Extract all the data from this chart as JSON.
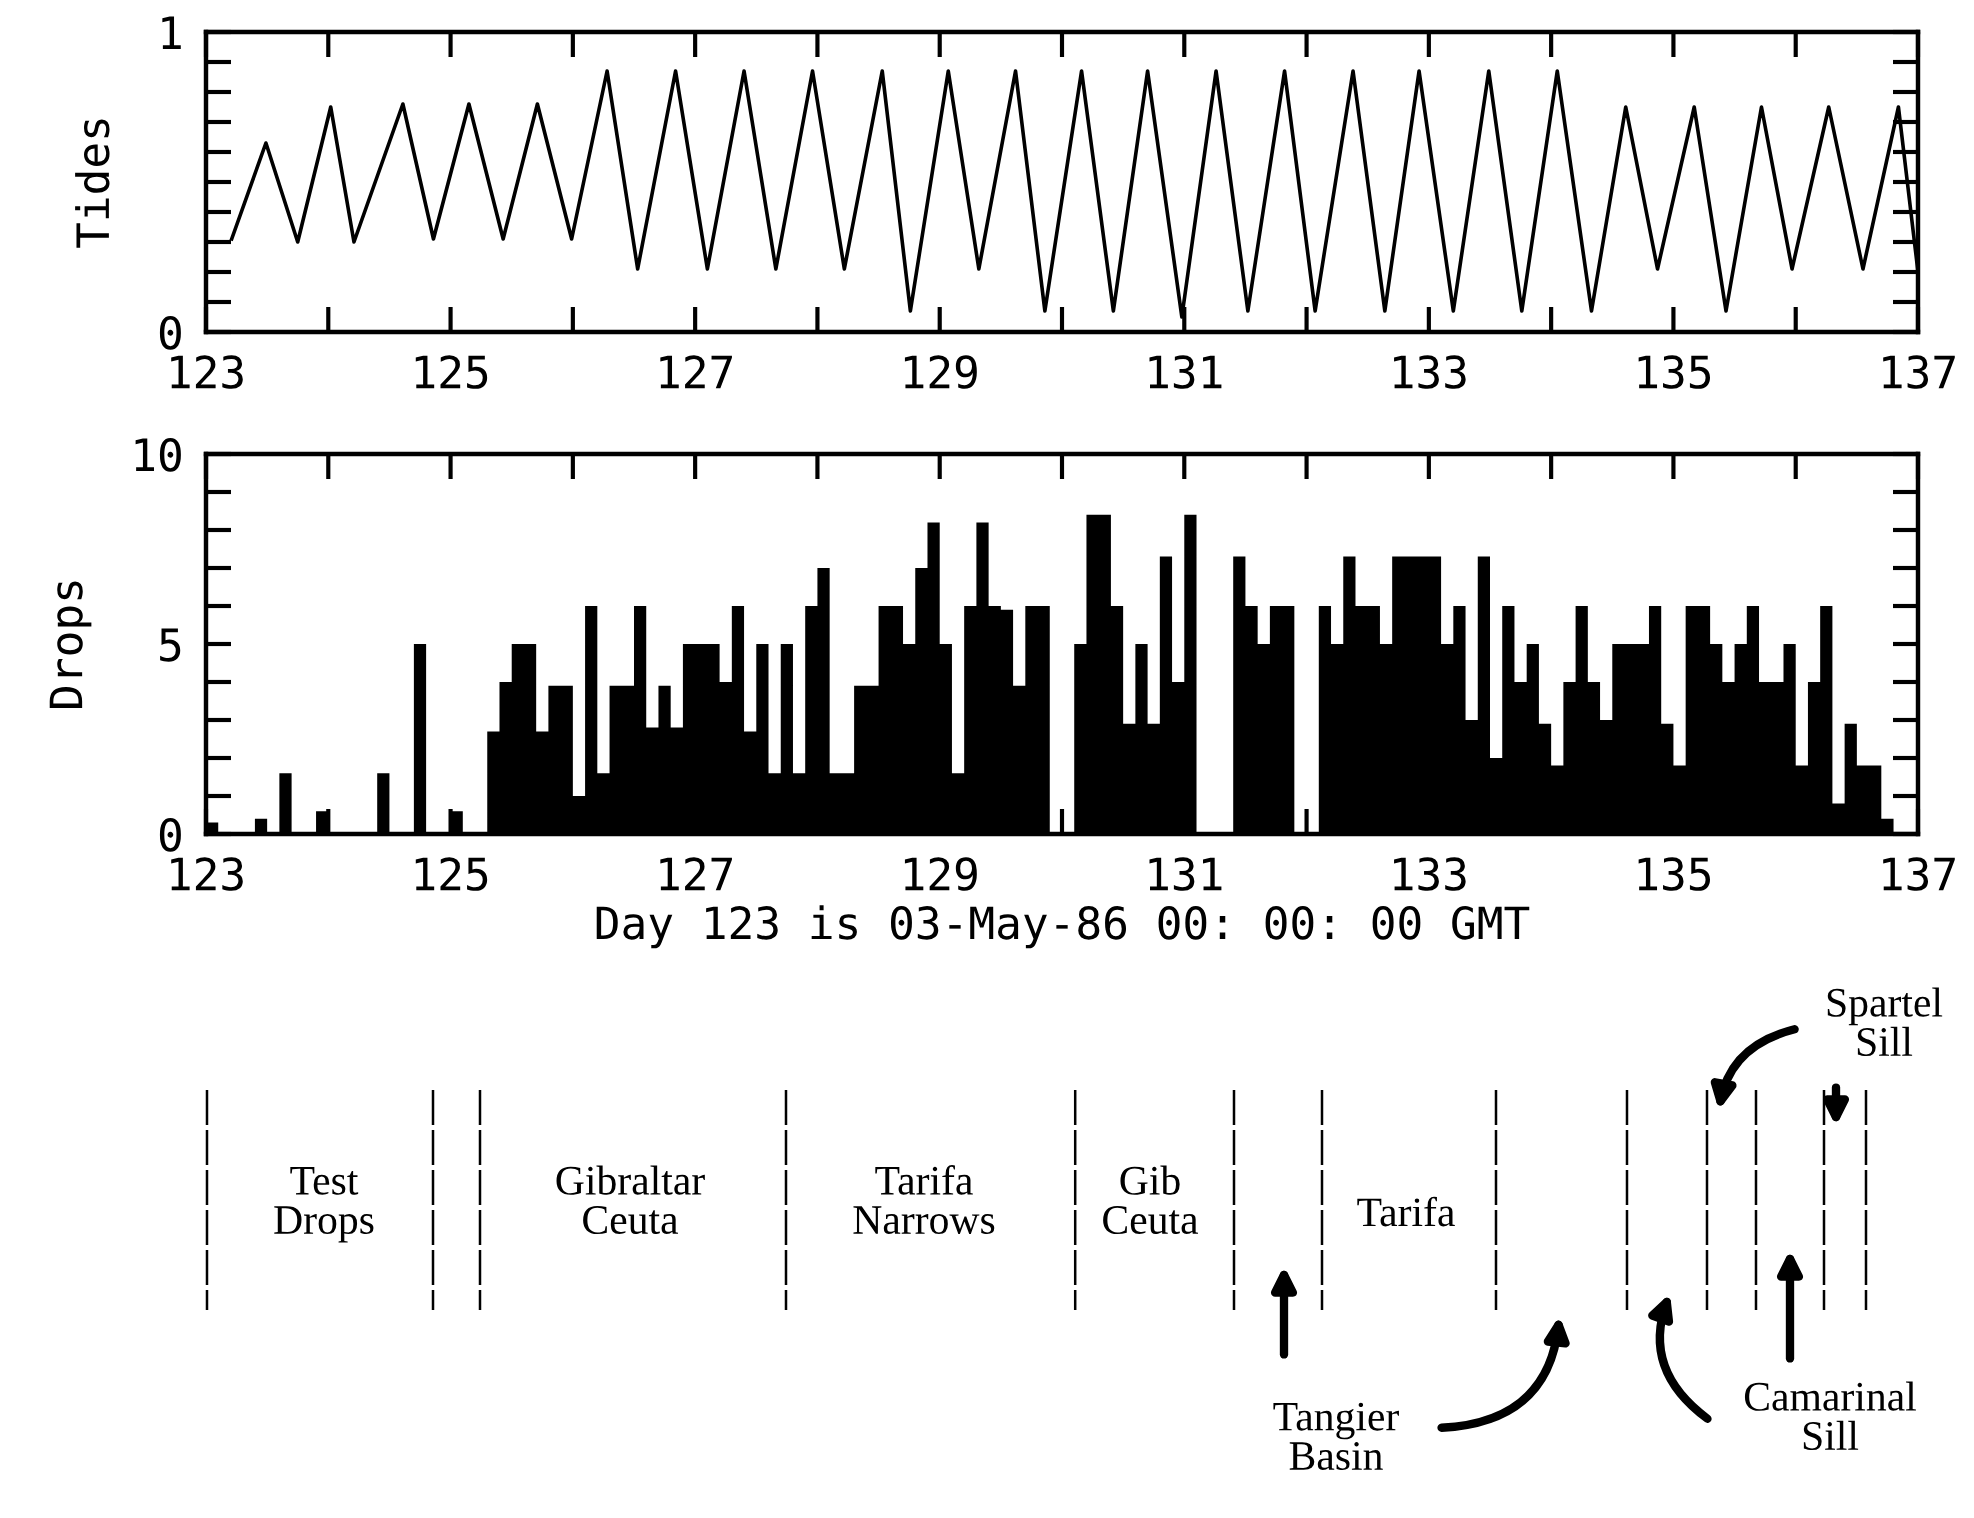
{
  "chart_data": [
    {
      "type": "line",
      "ylabel": "Tides",
      "color": "#000000",
      "marker": "none",
      "line_style": "solid",
      "grid": false,
      "legend": false,
      "x": [
        123.21,
        123.49,
        123.75,
        124.02,
        124.21,
        124.61,
        124.86,
        125.15,
        125.43,
        125.71,
        125.99,
        126.28,
        126.53,
        126.84,
        127.1,
        127.4,
        127.66,
        127.96,
        128.22,
        128.53,
        128.76,
        129.07,
        129.32,
        129.62,
        129.86,
        130.16,
        130.42,
        130.7,
        130.98,
        131.26,
        131.52,
        131.82,
        132.07,
        132.38,
        132.64,
        132.92,
        133.2,
        133.49,
        133.76,
        134.05,
        134.33,
        134.61,
        134.87,
        135.17,
        135.43,
        135.72,
        135.97,
        136.27,
        136.55,
        136.84,
        137.0
      ],
      "values": [
        0.31,
        0.63,
        0.3,
        0.75,
        0.3,
        0.76,
        0.31,
        0.76,
        0.31,
        0.76,
        0.31,
        0.87,
        0.21,
        0.87,
        0.21,
        0.87,
        0.21,
        0.87,
        0.21,
        0.87,
        0.07,
        0.87,
        0.21,
        0.87,
        0.07,
        0.87,
        0.07,
        0.87,
        0.05,
        0.87,
        0.07,
        0.87,
        0.07,
        0.87,
        0.07,
        0.87,
        0.07,
        0.87,
        0.07,
        0.87,
        0.07,
        0.75,
        0.21,
        0.75,
        0.07,
        0.75,
        0.21,
        0.75,
        0.21,
        0.75,
        0.2
      ],
      "xlim": [
        123,
        137
      ],
      "xticks": [
        123,
        {
          "value": 124,
          "label": null
        },
        125,
        {
          "value": 126,
          "label": null
        },
        127,
        {
          "value": 128,
          "label": null
        },
        129,
        {
          "value": 130,
          "label": null
        },
        131,
        {
          "value": 132,
          "label": null
        },
        133,
        {
          "value": 134,
          "label": null
        },
        135,
        {
          "value": 136,
          "label": null
        },
        137
      ],
      "ylim": [
        0,
        1
      ],
      "yticks": [
        0,
        {
          "value": 0.1,
          "label": null
        },
        {
          "value": 0.2,
          "label": null
        },
        {
          "value": 0.3,
          "label": null
        },
        {
          "value": 0.4,
          "label": null
        },
        {
          "value": 0.5,
          "label": null
        },
        {
          "value": 0.6,
          "label": null
        },
        {
          "value": 0.7,
          "label": null
        },
        {
          "value": 0.8,
          "label": null
        },
        {
          "value": 0.9,
          "label": null
        },
        1
      ]
    },
    {
      "type": "histogram",
      "ylabel": "Drops",
      "xlabel": "Day 123 is 03-May-86 00: 00: 00 GMT",
      "color": "#000000",
      "grid": false,
      "legend": false,
      "bins": [
        123.0,
        123.1,
        123.2,
        123.3,
        123.4,
        123.5,
        123.6,
        123.7,
        123.8,
        123.9,
        124.0,
        124.1,
        124.2,
        124.3,
        124.4,
        124.5,
        124.6,
        124.7,
        124.8,
        124.9,
        125.0,
        125.1,
        125.2,
        125.3,
        125.4,
        125.5,
        125.6,
        125.7,
        125.8,
        125.9,
        126.0,
        126.1,
        126.2,
        126.3,
        126.4,
        126.5,
        126.6,
        126.7,
        126.8,
        126.9,
        127.0,
        127.1,
        127.2,
        127.3,
        127.4,
        127.5,
        127.6,
        127.7,
        127.8,
        127.9,
        128.0,
        128.1,
        128.2,
        128.3,
        128.4,
        128.5,
        128.6,
        128.7,
        128.8,
        128.9,
        129.0,
        129.1,
        129.2,
        129.3,
        129.4,
        129.5,
        129.6,
        129.7,
        129.8,
        129.9,
        130.0,
        130.1,
        130.2,
        130.3,
        130.4,
        130.5,
        130.6,
        130.7,
        130.8,
        130.9,
        131.0,
        131.1,
        131.2,
        131.3,
        131.4,
        131.5,
        131.6,
        131.7,
        131.8,
        131.9,
        132.0,
        132.1,
        132.2,
        132.3,
        132.4,
        132.5,
        132.6,
        132.7,
        132.8,
        132.9,
        133.0,
        133.1,
        133.2,
        133.3,
        133.4,
        133.5,
        133.6,
        133.7,
        133.8,
        133.9,
        134.0,
        134.1,
        134.2,
        134.3,
        134.4,
        134.5,
        134.6,
        134.7,
        134.8,
        134.9,
        135.0,
        135.1,
        135.2,
        135.3,
        135.4,
        135.5,
        135.6,
        135.7,
        135.8,
        135.9,
        136.0,
        136.1,
        136.2,
        136.3,
        136.4,
        136.5,
        136.6,
        136.7,
        136.8,
        136.9,
        137.0
      ],
      "values": [
        0.3,
        0,
        0,
        0,
        0.4,
        0,
        1.6,
        0,
        0,
        0.6,
        0,
        0,
        0,
        0,
        1.6,
        0,
        0,
        5,
        0,
        0,
        0.6,
        0,
        0,
        2.7,
        4,
        5,
        5,
        2.7,
        3.9,
        3.9,
        1,
        6,
        1.6,
        3.9,
        3.9,
        6,
        2.8,
        3.9,
        2.8,
        5,
        5,
        5,
        4,
        6,
        2.7,
        5,
        1.6,
        5,
        1.6,
        6,
        7,
        1.6,
        1.6,
        3.9,
        3.9,
        6,
        6,
        5,
        7,
        8.2,
        5,
        1.6,
        6,
        8.2,
        6,
        5.9,
        3.9,
        6,
        6,
        0,
        0,
        5,
        8.4,
        8.4,
        6,
        2.9,
        5,
        2.9,
        7.3,
        4,
        8.4,
        0,
        0,
        0,
        7.3,
        6,
        5,
        6,
        6,
        0,
        0,
        6,
        5,
        7.3,
        6,
        6,
        5,
        7.3,
        7.3,
        7.3,
        7.3,
        5,
        6,
        3,
        7.3,
        2,
        6,
        4,
        5,
        2.9,
        1.8,
        4,
        6,
        4,
        3,
        5,
        5,
        5,
        6,
        2.9,
        1.8,
        6,
        6,
        5,
        4,
        5,
        6,
        4,
        4,
        5,
        1.8,
        4,
        6,
        0.8,
        2.9,
        1.8,
        1.8,
        0.4,
        0,
        0
      ],
      "xlim": [
        123,
        137
      ],
      "xticks": [
        123,
        {
          "value": 124,
          "label": null
        },
        125,
        {
          "value": 126,
          "label": null
        },
        127,
        {
          "value": 128,
          "label": null
        },
        129,
        {
          "value": 130,
          "label": null
        },
        131,
        {
          "value": 132,
          "label": null
        },
        133,
        {
          "value": 134,
          "label": null
        },
        135,
        {
          "value": 136,
          "label": null
        },
        137
      ],
      "ylim": [
        0,
        10
      ],
      "yticks": [
        0,
        {
          "value": 1,
          "label": null
        },
        {
          "value": 2,
          "label": null
        },
        {
          "value": 3,
          "label": null
        },
        {
          "value": 4,
          "label": null
        },
        5,
        {
          "value": 6,
          "label": null
        },
        {
          "value": 7,
          "label": null
        },
        {
          "value": 8,
          "label": null
        },
        {
          "value": 9,
          "label": null
        },
        10
      ]
    },
    {
      "type": "other",
      "annotations": [
        "Test\nDrops",
        "Gibraltar\nCeuta",
        "Tarifa\nNarrows",
        "Gib\nCeuta",
        "Tarifa",
        "Tangier\nBasin",
        "Camarinal\nSill",
        "Spartel\nSill"
      ]
    }
  ]
}
